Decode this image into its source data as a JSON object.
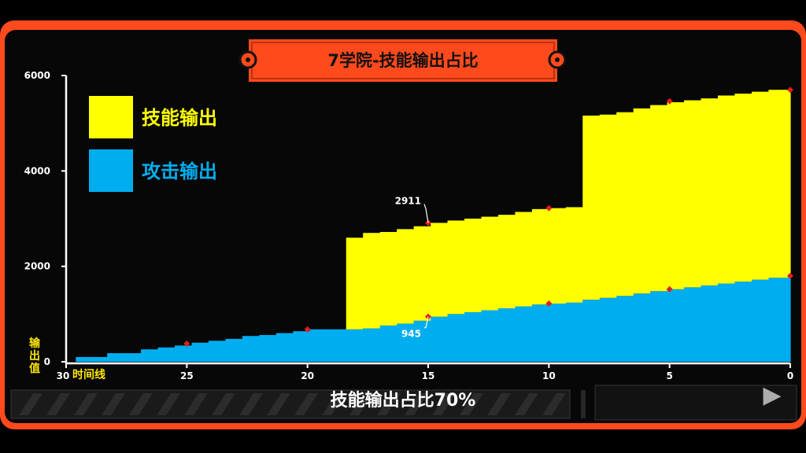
{
  "colors": {
    "frame": "#fe4a1c",
    "skill": "#ffff00",
    "attack": "#00aeef",
    "marker": "#e01e1e",
    "axis_title": "#ffe600"
  },
  "caption": "技能输出占比70%",
  "chart_data": {
    "type": "area",
    "title": "7学院-技能输出占比",
    "xlabel": "时间线",
    "ylabel": "输出值",
    "x_reversed": true,
    "xlim": [
      30,
      0
    ],
    "ylim": [
      0,
      6000
    ],
    "xticks": [
      "30",
      "25",
      "20",
      "15",
      "10",
      "5",
      "0"
    ],
    "yticks": [
      "0",
      "2000",
      "4000",
      "6000"
    ],
    "legend_position": "top-left",
    "x": [
      29.6,
      29,
      28.3,
      27.6,
      26.9,
      26.2,
      25.5,
      24.8,
      24.1,
      23.4,
      22.7,
      22,
      21.3,
      20.6,
      19.9,
      19.1,
      18.4,
      17.7,
      17,
      16.3,
      15.6,
      14.9,
      14.2,
      13.5,
      12.8,
      12.1,
      11.4,
      10.7,
      10,
      9.3,
      8.6,
      7.9,
      7.2,
      6.5,
      5.8,
      5.1,
      4.4,
      3.7,
      3,
      2.3,
      1.6,
      0.9,
      0.1
    ],
    "series": [
      {
        "name": "攻击输出",
        "values": [
          100,
          100,
          180,
          180,
          260,
          300,
          340,
          400,
          440,
          480,
          540,
          560,
          600,
          640,
          680,
          680,
          680,
          700,
          760,
          800,
          860,
          945,
          1000,
          1040,
          1080,
          1120,
          1160,
          1200,
          1220,
          1240,
          1300,
          1340,
          1380,
          1430,
          1480,
          1520,
          1560,
          1600,
          1640,
          1680,
          1720,
          1760,
          1800
        ]
      },
      {
        "name": "技能输出",
        "values": [
          0,
          0,
          0,
          0,
          0,
          0,
          0,
          0,
          0,
          0,
          0,
          0,
          0,
          0,
          0,
          0,
          1920,
          2000,
          1960,
          1980,
          1980,
          1966,
          1960,
          1960,
          1960,
          1960,
          1980,
          2000,
          2000,
          2000,
          3860,
          3840,
          3850,
          3880,
          3900,
          3920,
          3920,
          3920,
          3940,
          3940,
          3940,
          3940,
          3900
        ]
      }
    ],
    "markers": {
      "attack": [
        [
          25,
          380
        ],
        [
          20,
          680
        ],
        [
          15,
          945
        ],
        [
          10,
          1220
        ],
        [
          5,
          1520
        ],
        [
          0,
          1800
        ]
      ],
      "total": [
        [
          15,
          2911
        ],
        [
          10,
          3220
        ],
        [
          5,
          5460
        ],
        [
          0,
          5700
        ]
      ]
    },
    "annotations": [
      {
        "text": "2911",
        "x": 15,
        "y": 2911
      },
      {
        "text": "945",
        "x": 15,
        "y": 945
      }
    ]
  }
}
